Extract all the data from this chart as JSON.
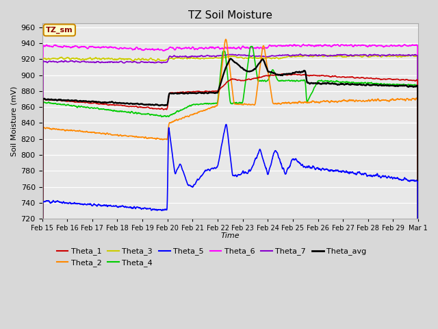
{
  "title": "TZ Soil Moisture",
  "xlabel": "Time",
  "ylabel": "Soil Moisture (mV)",
  "ylim": [
    720,
    965
  ],
  "yticks": [
    720,
    740,
    760,
    780,
    800,
    820,
    840,
    860,
    880,
    900,
    920,
    940,
    960
  ],
  "bg_color": "#e8e8e8",
  "plot_bg": "#e8e8e8",
  "box_label": "TZ_sm",
  "series_colors": {
    "Theta_1": "#cc0000",
    "Theta_2": "#ff8800",
    "Theta_3": "#cccc00",
    "Theta_4": "#00cc00",
    "Theta_5": "#0000ff",
    "Theta_6": "#ff00ff",
    "Theta_7": "#8800cc",
    "Theta_avg": "#000000"
  },
  "date_labels": [
    "Feb 15",
    "Feb 16",
    "Feb 17",
    "Feb 18",
    "Feb 19",
    "Feb 20",
    "Feb 21",
    "Feb 22",
    "Feb 23",
    "Feb 24",
    "Feb 25",
    "Feb 26",
    "Feb 27",
    "Feb 28",
    "Feb 29",
    "Mar 1"
  ]
}
